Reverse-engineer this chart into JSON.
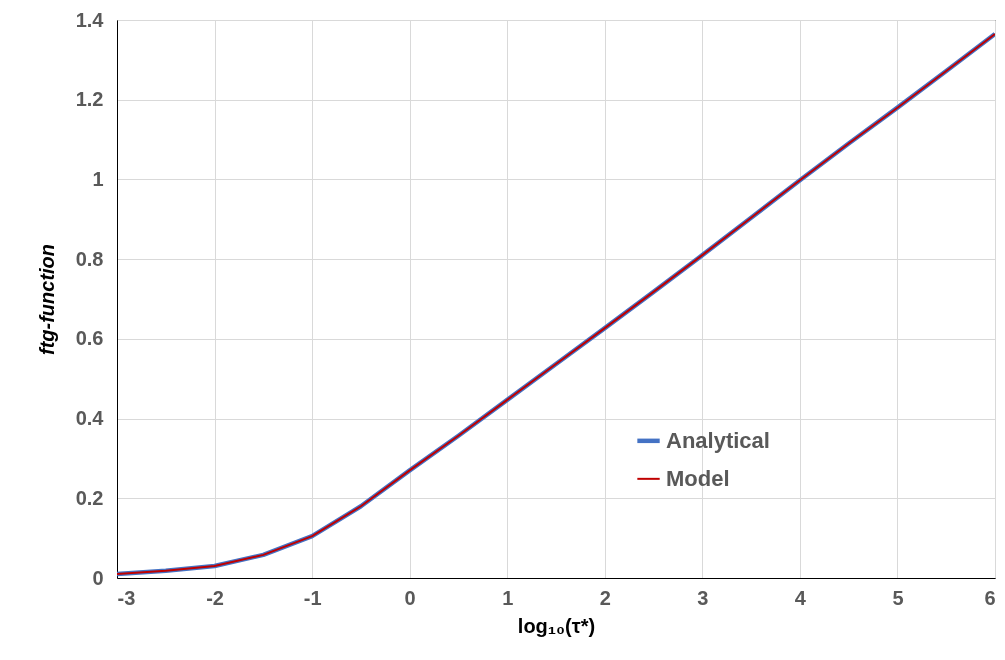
{
  "chart_data": {
    "type": "line",
    "xlabel": "log₁₀(τ*)",
    "ylabel": "ftg-function",
    "x": [
      -3,
      -2.5,
      -2,
      -1.5,
      -1,
      -0.5,
      0,
      0.5,
      1,
      1.5,
      2,
      2.5,
      3,
      3.5,
      4,
      4.5,
      5,
      5.5,
      6
    ],
    "series": [
      {
        "name": "Analytical",
        "color": "#4472c4",
        "values": [
          0.01,
          0.018,
          0.03,
          0.058,
          0.105,
          0.18,
          0.27,
          0.357,
          0.447,
          0.537,
          0.627,
          0.718,
          0.81,
          0.904,
          0.998,
          1.09,
          1.18,
          1.272,
          1.365
        ]
      },
      {
        "name": "Model",
        "color": "#c00000",
        "values": [
          0.01,
          0.018,
          0.03,
          0.058,
          0.105,
          0.18,
          0.27,
          0.357,
          0.447,
          0.537,
          0.627,
          0.718,
          0.81,
          0.904,
          0.998,
          1.09,
          1.18,
          1.272,
          1.365
        ]
      }
    ],
    "xlim": [
      -3,
      6
    ],
    "xticks": [
      -3,
      -2,
      -1,
      0,
      1,
      2,
      3,
      4,
      5,
      6
    ],
    "ylim": [
      0,
      1.4
    ],
    "yticks": [
      0,
      0.2,
      0.4,
      0.6,
      0.8,
      1,
      1.2,
      1.4
    ],
    "grid": true,
    "legend": "bottom right",
    "marker": "none",
    "line_style": "solid"
  }
}
